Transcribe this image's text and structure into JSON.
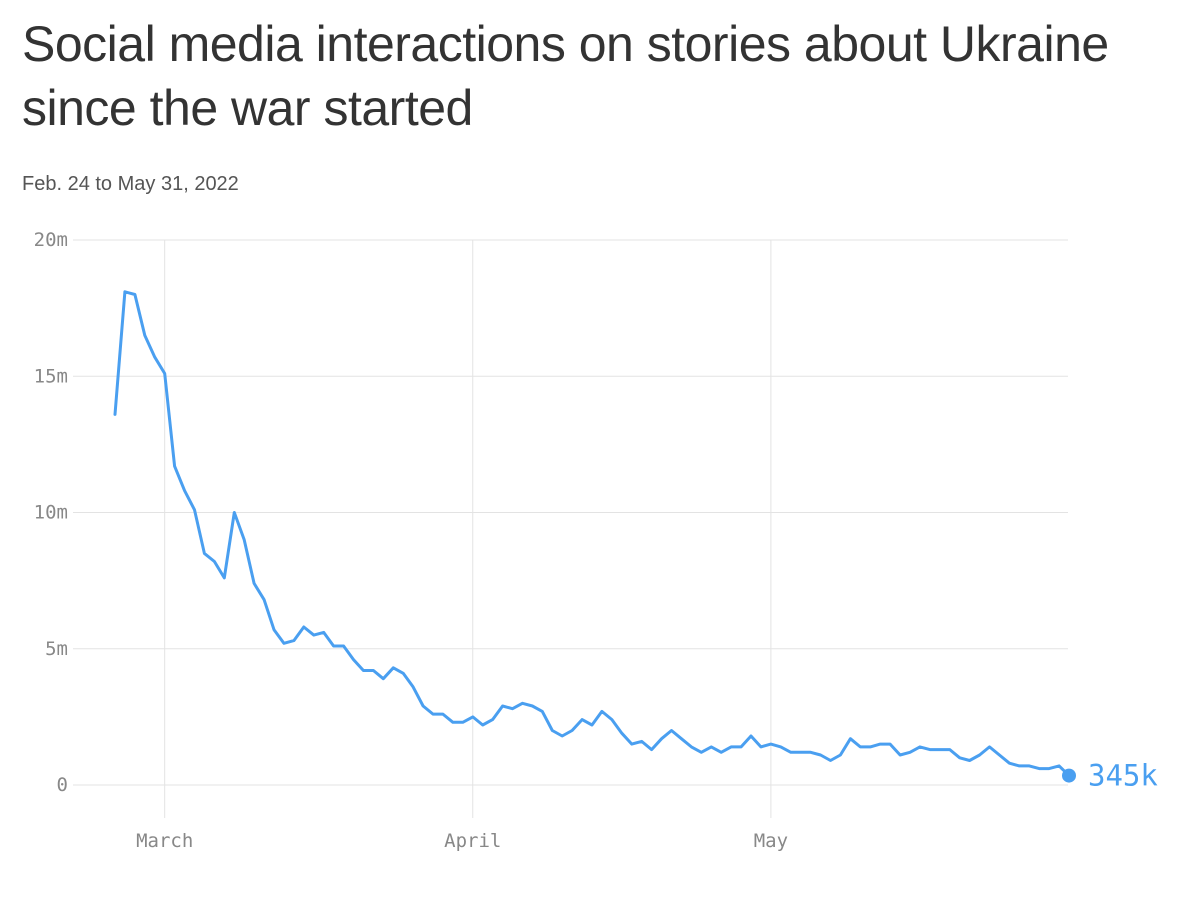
{
  "title": "Social media interactions on stories about Ukraine since the war started",
  "subtitle": "Feb. 24 to May 31, 2022",
  "chart_data": {
    "type": "line",
    "title": "Social media interactions on stories about Ukraine since the war started",
    "subtitle": "Feb. 24 to May 31, 2022",
    "xlabel": "",
    "ylabel": "",
    "x_start": "2022-02-24",
    "x_end": "2022-05-31",
    "x_ticks": [
      {
        "label": "March",
        "date": "2022-03-01"
      },
      {
        "label": "April",
        "date": "2022-04-01"
      },
      {
        "label": "May",
        "date": "2022-05-01"
      }
    ],
    "y_ticks": [
      {
        "label": "0",
        "value": 0
      },
      {
        "label": "5m",
        "value": 5000000
      },
      {
        "label": "10m",
        "value": 10000000
      },
      {
        "label": "15m",
        "value": 15000000
      },
      {
        "label": "20m",
        "value": 20000000
      }
    ],
    "ylim": [
      0,
      20000000
    ],
    "grid": true,
    "legend": "none",
    "series_color": "#4a9ff0",
    "end_label": "345k",
    "series": [
      {
        "values": [
          13600000,
          18100000,
          18000000,
          16500000,
          15700000,
          15100000,
          11700000,
          10800000,
          10100000,
          8500000,
          8200000,
          7600000,
          10000000,
          9000000,
          7400000,
          6800000,
          5700000,
          5200000,
          5300000,
          5800000,
          5500000,
          5600000,
          5100000,
          5100000,
          4600000,
          4200000,
          4200000,
          3900000,
          4300000,
          4100000,
          3600000,
          2900000,
          2600000,
          2600000,
          2300000,
          2300000,
          2500000,
          2200000,
          2400000,
          2900000,
          2800000,
          3000000,
          2900000,
          2700000,
          2000000,
          1800000,
          2000000,
          2400000,
          2200000,
          2700000,
          2400000,
          1900000,
          1500000,
          1600000,
          1300000,
          1700000,
          2000000,
          1700000,
          1400000,
          1200000,
          1400000,
          1200000,
          1400000,
          1400000,
          1800000,
          1400000,
          1500000,
          1400000,
          1200000,
          1200000,
          1200000,
          1100000,
          900000,
          1100000,
          1700000,
          1400000,
          1400000,
          1500000,
          1500000,
          1100000,
          1200000,
          1400000,
          1300000,
          1300000,
          1300000,
          1000000,
          900000,
          1100000,
          1400000,
          1100000,
          800000,
          700000,
          700000,
          600000,
          600000,
          700000,
          345000
        ]
      }
    ]
  }
}
